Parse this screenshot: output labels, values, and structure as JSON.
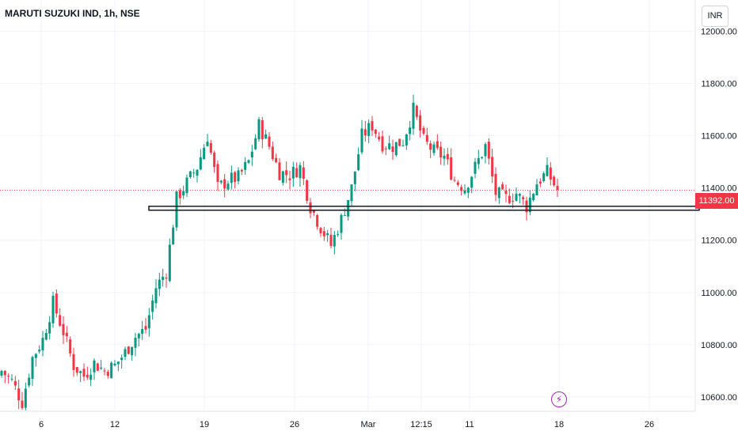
{
  "chart_data": {
    "type": "candlestick",
    "title": "MARUTI SUZUKI IND, 1h, NSE",
    "currency": "INR",
    "y_ticks": [
      10600,
      10800,
      11000,
      11200,
      11400,
      11600,
      11800,
      12000
    ],
    "y_tick_labels": [
      "10600.00",
      "10800.00",
      "11000.00",
      "11200.00",
      "11400.00",
      "11600.00",
      "11800.00",
      "12000.00"
    ],
    "x_tick_labels": [
      "6",
      "12",
      "19",
      "26",
      "Mar",
      "12:15",
      "11",
      "18",
      "26"
    ],
    "last_price": 11392.0,
    "last_price_label": "11392.00",
    "support_band": [
      11315,
      11330
    ],
    "ylim": [
      10545,
      12120
    ],
    "colors": {
      "up": "#089981",
      "down": "#f23645",
      "grid": "#f0f3fa",
      "axis_text": "#131722"
    },
    "anchor_closes": [
      10700,
      10660,
      10580,
      10750,
      10820,
      10960,
      10850,
      10720,
      10680,
      10730,
      10700,
      10720,
      10770,
      10830,
      10860,
      11020,
      11080,
      11360,
      11420,
      11480,
      11600,
      11400,
      11430,
      11440,
      11500,
      11640,
      11560,
      11460,
      11450,
      11480,
      11330,
      11250,
      11180,
      11280,
      11400,
      11600,
      11640,
      11570,
      11560,
      11580,
      11700,
      11580,
      11540,
      11520,
      11430,
      11400,
      11480,
      11560,
      11380,
      11360,
      11380,
      11330,
      11420,
      11460,
      11392
    ]
  },
  "event_icon": "lightning-icon"
}
